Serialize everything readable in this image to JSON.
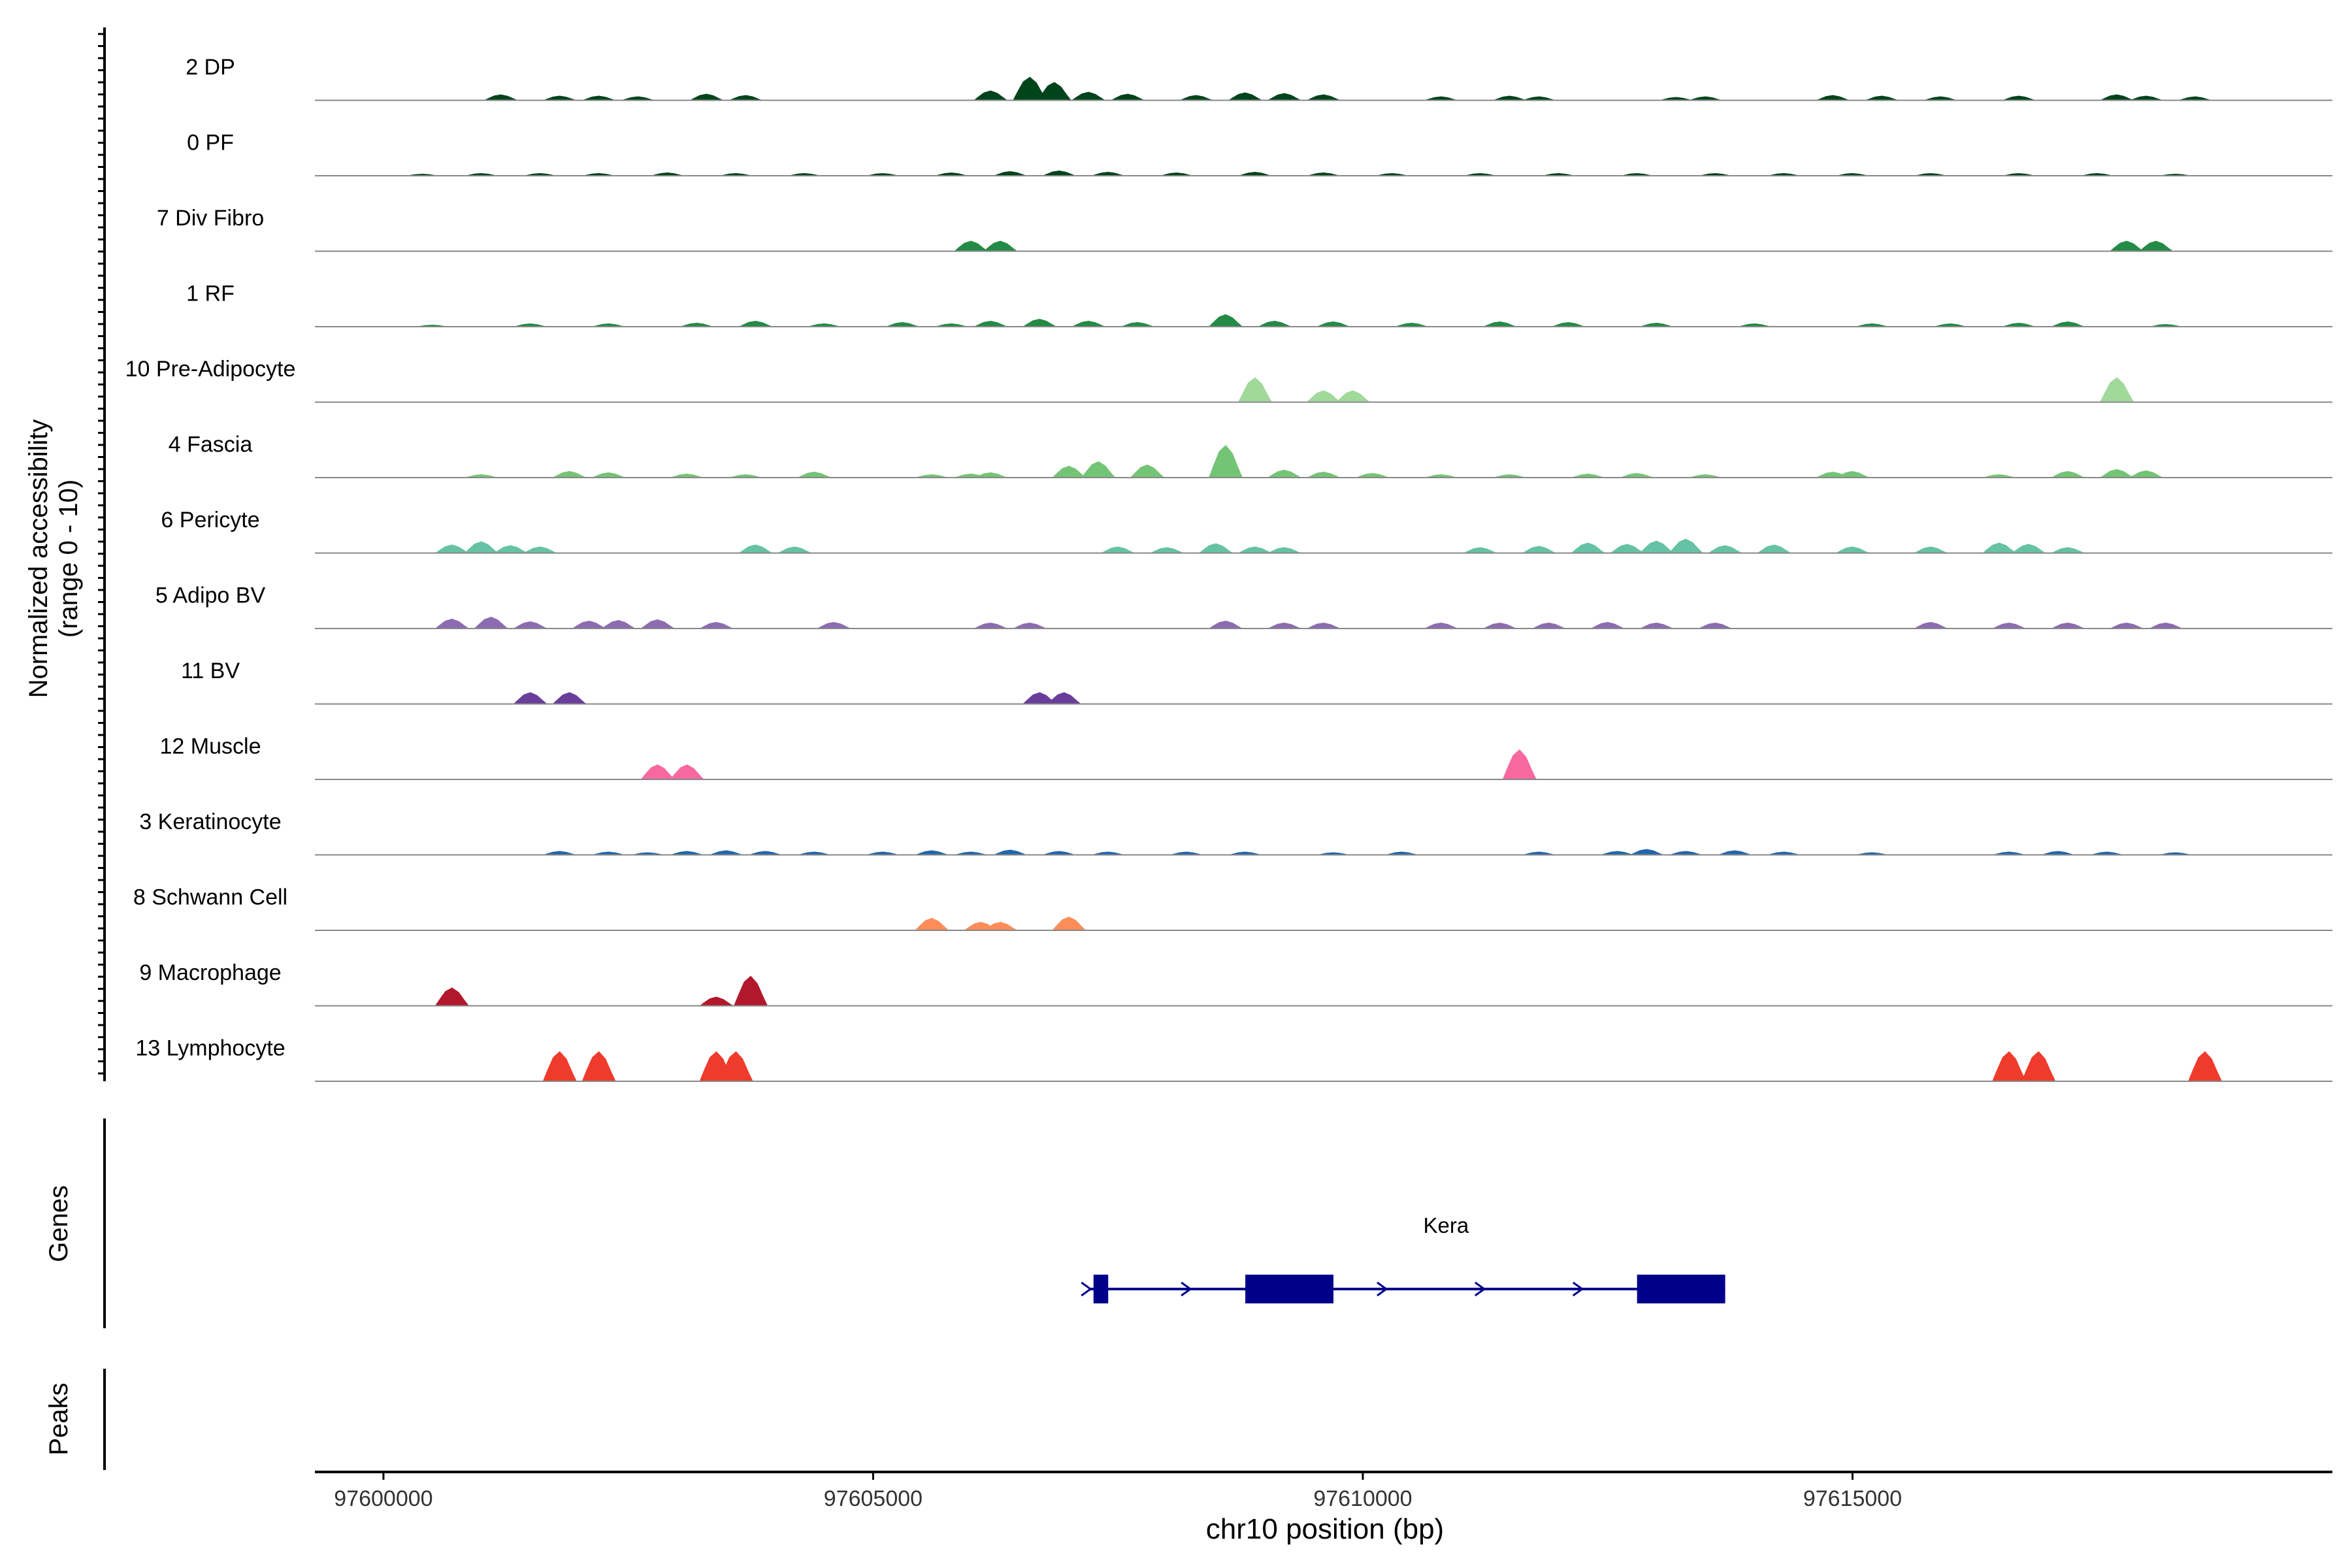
{
  "chart_data": {
    "type": "area",
    "ylabel_line1": "Normalized accessibility",
    "ylabel_line2": "(range 0 - 10)",
    "xlabel": "chr10 position (bp)",
    "xlim": [
      97599300,
      97619900
    ],
    "xticks": [
      97600000,
      97605000,
      97610000,
      97615000
    ],
    "xtick_labels": [
      "97600000",
      "97605000",
      "97610000",
      "97615000"
    ],
    "ylim": [
      0,
      10
    ],
    "genes_label": "Genes",
    "peaks_label": "Peaks",
    "gene": {
      "name": "Kera",
      "color": "#00008B",
      "start": 97607200,
      "end": 97613700,
      "strand": "+",
      "exons": [
        [
          97607250,
          97607400
        ],
        [
          97608800,
          97609700
        ],
        [
          97612800,
          97613700
        ]
      ],
      "arrow_positions": [
        97607180,
        97608200,
        97610200,
        97611200,
        97612200
      ]
    },
    "tracks": [
      {
        "name": "2 DP",
        "color": "#00441B",
        "peaks": [
          [
            97601200,
            0.9
          ],
          [
            97601800,
            0.7
          ],
          [
            97602200,
            0.7
          ],
          [
            97602600,
            0.6
          ],
          [
            97603300,
            1.0
          ],
          [
            97603700,
            0.8
          ],
          [
            97606200,
            1.5
          ],
          [
            97606600,
            3.6
          ],
          [
            97606850,
            2.8
          ],
          [
            97607200,
            1.3
          ],
          [
            97607600,
            1.0
          ],
          [
            97608300,
            0.8
          ],
          [
            97608800,
            1.2
          ],
          [
            97609200,
            1.1
          ],
          [
            97609600,
            0.9
          ],
          [
            97610800,
            0.6
          ],
          [
            97611500,
            0.7
          ],
          [
            97611800,
            0.6
          ],
          [
            97613200,
            0.5
          ],
          [
            97613500,
            0.6
          ],
          [
            97614800,
            0.8
          ],
          [
            97615300,
            0.7
          ],
          [
            97615900,
            0.6
          ],
          [
            97616700,
            0.7
          ],
          [
            97617700,
            0.9
          ],
          [
            97618000,
            0.7
          ],
          [
            97618500,
            0.6
          ]
        ]
      },
      {
        "name": "0 PF",
        "color": "#00441B",
        "peaks": [
          [
            97600400,
            0.3
          ],
          [
            97601000,
            0.4
          ],
          [
            97601600,
            0.4
          ],
          [
            97602200,
            0.4
          ],
          [
            97602900,
            0.5
          ],
          [
            97603600,
            0.4
          ],
          [
            97604300,
            0.4
          ],
          [
            97605100,
            0.4
          ],
          [
            97605800,
            0.5
          ],
          [
            97606400,
            0.7
          ],
          [
            97606900,
            0.8
          ],
          [
            97607400,
            0.6
          ],
          [
            97608100,
            0.5
          ],
          [
            97608900,
            0.6
          ],
          [
            97609600,
            0.5
          ],
          [
            97610300,
            0.4
          ],
          [
            97611200,
            0.4
          ],
          [
            97612000,
            0.4
          ],
          [
            97612800,
            0.4
          ],
          [
            97613600,
            0.4
          ],
          [
            97614300,
            0.4
          ],
          [
            97615000,
            0.4
          ],
          [
            97615800,
            0.4
          ],
          [
            97616700,
            0.4
          ],
          [
            97617500,
            0.4
          ],
          [
            97618300,
            0.3
          ]
        ]
      },
      {
        "name": "7 Div Fibro",
        "color": "#238B45",
        "peaks": [
          [
            97606000,
            1.6
          ],
          [
            97606300,
            1.6
          ],
          [
            97617800,
            1.6
          ],
          [
            97618100,
            1.6
          ]
        ]
      },
      {
        "name": "1 RF",
        "color": "#238B45",
        "peaks": [
          [
            97600500,
            0.3
          ],
          [
            97601500,
            0.5
          ],
          [
            97602300,
            0.5
          ],
          [
            97603200,
            0.6
          ],
          [
            97603800,
            0.9
          ],
          [
            97604500,
            0.5
          ],
          [
            97605300,
            0.7
          ],
          [
            97605800,
            0.5
          ],
          [
            97606200,
            0.9
          ],
          [
            97606700,
            1.2
          ],
          [
            97607200,
            0.9
          ],
          [
            97607700,
            0.7
          ],
          [
            97608600,
            1.9
          ],
          [
            97609100,
            0.9
          ],
          [
            97609700,
            0.8
          ],
          [
            97610500,
            0.6
          ],
          [
            97611400,
            0.8
          ],
          [
            97612100,
            0.7
          ],
          [
            97613000,
            0.6
          ],
          [
            97614000,
            0.5
          ],
          [
            97615200,
            0.5
          ],
          [
            97616000,
            0.5
          ],
          [
            97616700,
            0.6
          ],
          [
            97617200,
            0.8
          ],
          [
            97618200,
            0.4
          ]
        ]
      },
      {
        "name": "10 Pre-Adipocyte",
        "color": "#A1D99B",
        "peaks": [
          [
            97608900,
            3.8
          ],
          [
            97609600,
            1.8
          ],
          [
            97609900,
            1.8
          ],
          [
            97617700,
            3.8
          ]
        ]
      },
      {
        "name": "4 Fascia",
        "color": "#74C476",
        "peaks": [
          [
            97601000,
            0.5
          ],
          [
            97601900,
            1.0
          ],
          [
            97602300,
            0.8
          ],
          [
            97603100,
            0.6
          ],
          [
            97603700,
            0.5
          ],
          [
            97604400,
            0.9
          ],
          [
            97605600,
            0.5
          ],
          [
            97606000,
            0.6
          ],
          [
            97606200,
            0.8
          ],
          [
            97607000,
            1.8
          ],
          [
            97607300,
            2.5
          ],
          [
            97607800,
            2.0
          ],
          [
            97608600,
            5.0
          ],
          [
            97609200,
            1.2
          ],
          [
            97609600,
            0.9
          ],
          [
            97610100,
            0.7
          ],
          [
            97610800,
            0.5
          ],
          [
            97611500,
            0.5
          ],
          [
            97612300,
            0.6
          ],
          [
            97612800,
            0.7
          ],
          [
            97613500,
            0.5
          ],
          [
            97614800,
            0.9
          ],
          [
            97615000,
            1.0
          ],
          [
            97616500,
            0.5
          ],
          [
            97617200,
            1.0
          ],
          [
            97617700,
            1.3
          ],
          [
            97618000,
            1.1
          ]
        ]
      },
      {
        "name": "6 Pericyte",
        "color": "#66C2A4",
        "peaks": [
          [
            97600700,
            1.3
          ],
          [
            97601000,
            1.8
          ],
          [
            97601300,
            1.2
          ],
          [
            97601600,
            1.0
          ],
          [
            97603800,
            1.3
          ],
          [
            97604200,
            1.0
          ],
          [
            97607500,
            1.0
          ],
          [
            97608000,
            0.9
          ],
          [
            97608500,
            1.5
          ],
          [
            97608900,
            1.0
          ],
          [
            97609200,
            0.9
          ],
          [
            97611200,
            0.9
          ],
          [
            97611800,
            1.1
          ],
          [
            97612300,
            1.6
          ],
          [
            97612700,
            1.4
          ],
          [
            97613000,
            1.9
          ],
          [
            97613300,
            2.2
          ],
          [
            97613700,
            1.2
          ],
          [
            97614200,
            1.3
          ],
          [
            97615000,
            1.0
          ],
          [
            97615800,
            1.0
          ],
          [
            97616500,
            1.6
          ],
          [
            97616800,
            1.4
          ],
          [
            97617200,
            0.9
          ]
        ]
      },
      {
        "name": "5 Adipo BV",
        "color": "#8C6BB1",
        "peaks": [
          [
            97600700,
            1.5
          ],
          [
            97601100,
            1.8
          ],
          [
            97601500,
            1.1
          ],
          [
            97602100,
            1.2
          ],
          [
            97602400,
            1.3
          ],
          [
            97602800,
            1.4
          ],
          [
            97603400,
            1.0
          ],
          [
            97604600,
            1.0
          ],
          [
            97606200,
            0.9
          ],
          [
            97606600,
            0.9
          ],
          [
            97608600,
            1.2
          ],
          [
            97609200,
            0.9
          ],
          [
            97609600,
            0.9
          ],
          [
            97610800,
            0.9
          ],
          [
            97611400,
            0.9
          ],
          [
            97611900,
            0.9
          ],
          [
            97612500,
            1.0
          ],
          [
            97613000,
            0.9
          ],
          [
            97613600,
            0.9
          ],
          [
            97615800,
            1.0
          ],
          [
            97616600,
            0.9
          ],
          [
            97617200,
            0.9
          ],
          [
            97617800,
            0.9
          ],
          [
            97618200,
            0.9
          ]
        ]
      },
      {
        "name": "11 BV",
        "color": "#6A3D9A",
        "peaks": [
          [
            97601500,
            1.8
          ],
          [
            97601900,
            1.8
          ],
          [
            97606700,
            1.8
          ],
          [
            97606950,
            1.8
          ]
        ]
      },
      {
        "name": "12 Muscle",
        "color": "#F768A1",
        "peaks": [
          [
            97602800,
            2.3
          ],
          [
            97603100,
            2.3
          ],
          [
            97611600,
            4.6
          ]
        ]
      },
      {
        "name": "3 Keratinocyte",
        "color": "#2166AC",
        "peaks": [
          [
            97601800,
            0.6
          ],
          [
            97602300,
            0.5
          ],
          [
            97602700,
            0.4
          ],
          [
            97603100,
            0.6
          ],
          [
            97603500,
            0.7
          ],
          [
            97603900,
            0.6
          ],
          [
            97604400,
            0.5
          ],
          [
            97605100,
            0.5
          ],
          [
            97605600,
            0.7
          ],
          [
            97606000,
            0.5
          ],
          [
            97606400,
            0.8
          ],
          [
            97606900,
            0.6
          ],
          [
            97607400,
            0.5
          ],
          [
            97608200,
            0.5
          ],
          [
            97608800,
            0.5
          ],
          [
            97609700,
            0.4
          ],
          [
            97610400,
            0.5
          ],
          [
            97611800,
            0.5
          ],
          [
            97612600,
            0.6
          ],
          [
            97612900,
            0.9
          ],
          [
            97613300,
            0.6
          ],
          [
            97613800,
            0.7
          ],
          [
            97614300,
            0.5
          ],
          [
            97615200,
            0.4
          ],
          [
            97616600,
            0.5
          ],
          [
            97617100,
            0.6
          ],
          [
            97617600,
            0.5
          ],
          [
            97618300,
            0.4
          ]
        ]
      },
      {
        "name": "8 Schwann Cell",
        "color": "#FC8D59",
        "peaks": [
          [
            97605600,
            1.9
          ],
          [
            97606100,
            1.3
          ],
          [
            97606300,
            1.3
          ],
          [
            97607000,
            2.1
          ]
        ]
      },
      {
        "name": "9 Macrophage",
        "color": "#B2182B",
        "peaks": [
          [
            97600700,
            2.8
          ],
          [
            97603400,
            1.4
          ],
          [
            97603750,
            4.6
          ]
        ]
      },
      {
        "name": "13 Lymphocyte",
        "color": "#EF3B2C",
        "peaks": [
          [
            97601800,
            4.6
          ],
          [
            97602200,
            4.6
          ],
          [
            97603400,
            4.6
          ],
          [
            97603600,
            4.6
          ],
          [
            97616600,
            4.6
          ],
          [
            97616900,
            4.6
          ],
          [
            97618600,
            4.6
          ]
        ]
      }
    ]
  }
}
